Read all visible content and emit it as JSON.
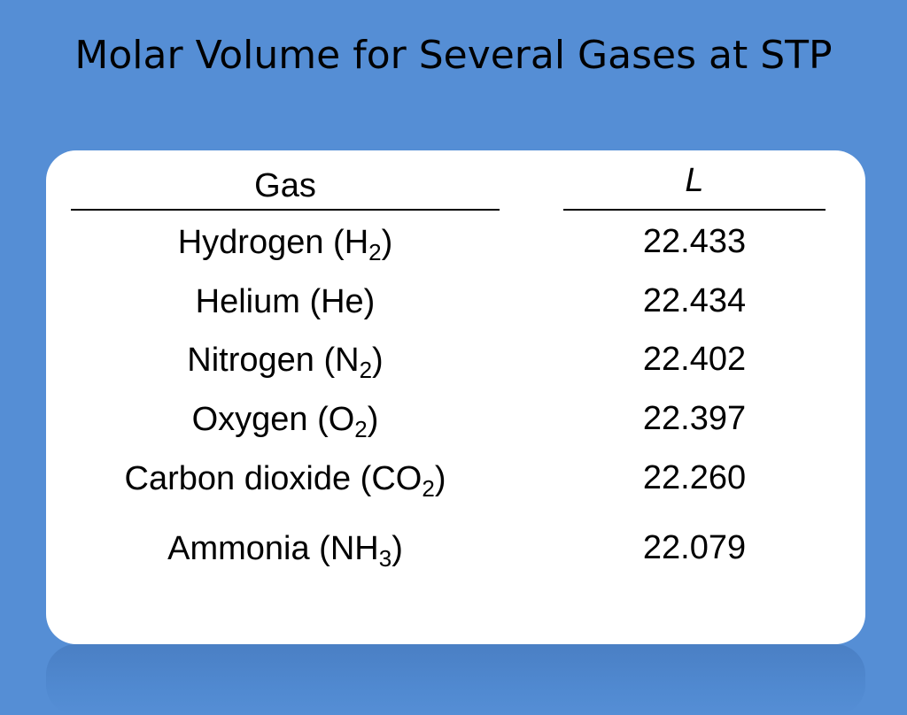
{
  "slide": {
    "title": "Molar Volume for Several Gases at STP"
  },
  "table": {
    "headers": {
      "gas": "Gas",
      "volume": "L"
    },
    "rows": [
      {
        "name": "Hydrogen (H",
        "sub": "2",
        "close": ")",
        "value": "22.433"
      },
      {
        "name": "Helium (He)",
        "sub": "",
        "close": "",
        "value": "22.434"
      },
      {
        "name": "Nitrogen (N",
        "sub": "2",
        "close": ")",
        "value": "22.402"
      },
      {
        "name": "Oxygen (O",
        "sub": "2",
        "close": ")",
        "value": "22.397"
      },
      {
        "name": "Carbon dioxide (CO",
        "sub": "2",
        "close": ")",
        "value": "22.260"
      },
      {
        "name": "Ammonia (NH",
        "sub": "3",
        "close": ")",
        "value": "22.079"
      }
    ]
  },
  "colors": {
    "background": "#558ed5",
    "panel": "#ffffff",
    "text": "#000000"
  }
}
